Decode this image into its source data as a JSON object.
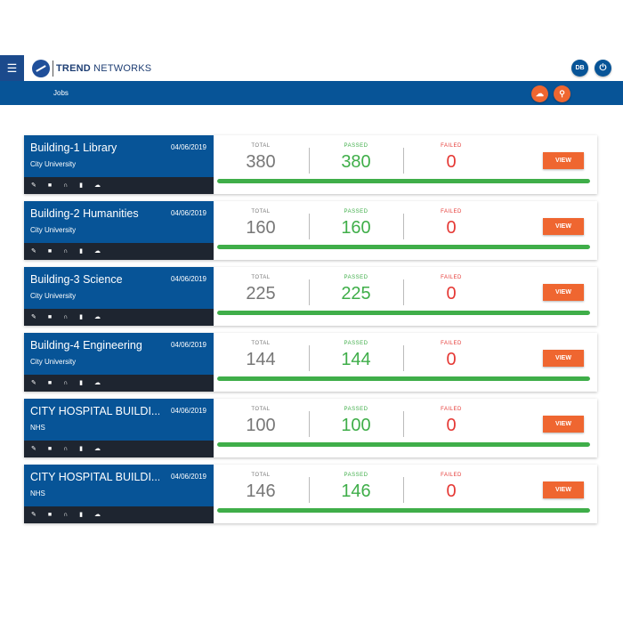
{
  "header": {
    "brand_bold": "TREND",
    "brand_rest": " NETWORKS",
    "user_initials": "DB"
  },
  "nav": {
    "title": "Jobs"
  },
  "labels": {
    "total": "TOTAL",
    "passed": "PASSED",
    "failed": "FAILED",
    "view": "VIEW"
  },
  "colors": {
    "primary": "#075497",
    "accent": "#ef6630",
    "passed": "#3fae49",
    "failed": "#e53935",
    "total": "#777777"
  },
  "jobs": [
    {
      "name": "Building-1 Library",
      "org": "City University",
      "date": "04/06/2019",
      "total": "380",
      "passed": "380",
      "failed": "0",
      "progress": 100
    },
    {
      "name": "Building-2 Humanities",
      "org": "City University",
      "date": "04/06/2019",
      "total": "160",
      "passed": "160",
      "failed": "0",
      "progress": 100
    },
    {
      "name": "Building-3 Science",
      "org": "City University",
      "date": "04/06/2019",
      "total": "225",
      "passed": "225",
      "failed": "0",
      "progress": 100
    },
    {
      "name": "Building-4 Engineering",
      "org": "City University",
      "date": "04/06/2019",
      "total": "144",
      "passed": "144",
      "failed": "0",
      "progress": 100
    },
    {
      "name": "CITY HOSPITAL BUILDI...",
      "org": "NHS",
      "date": "04/06/2019",
      "total": "100",
      "passed": "100",
      "failed": "0",
      "progress": 100
    },
    {
      "name": "CITY HOSPITAL BUILDI...",
      "org": "NHS",
      "date": "04/06/2019",
      "total": "146",
      "passed": "146",
      "failed": "0",
      "progress": 100
    }
  ]
}
